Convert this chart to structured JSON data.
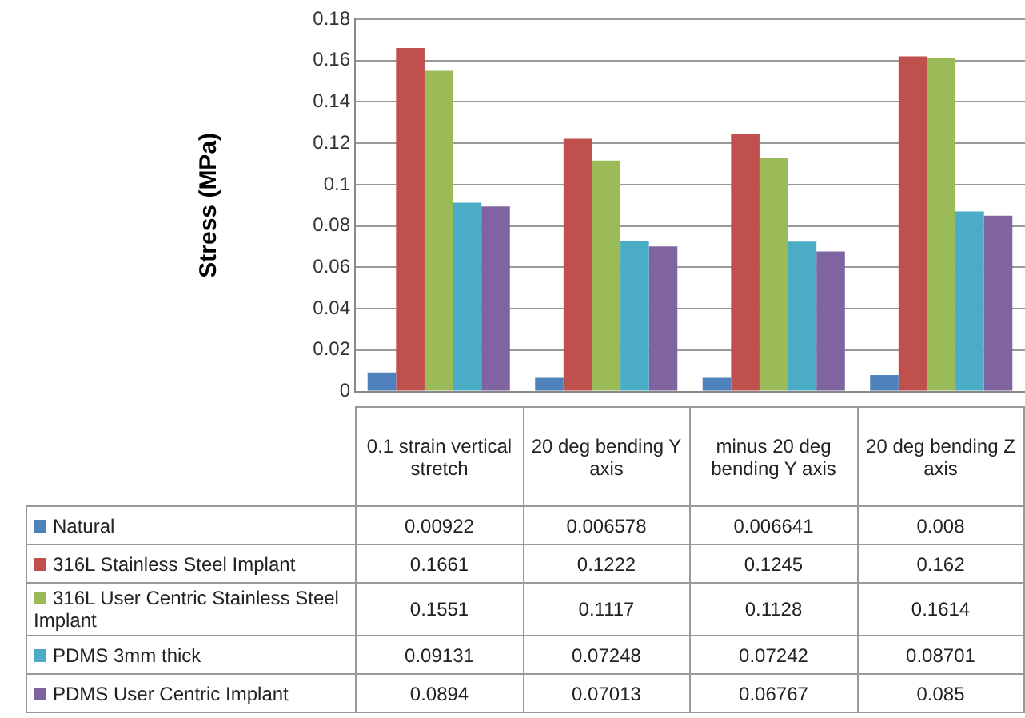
{
  "chart_data": {
    "type": "bar",
    "ylabel": "Stress (MPa)",
    "categories": [
      "0.1 strain vertical stretch",
      "20 deg bending Y axis",
      "minus 20 deg bending Y axis",
      "20 deg bending Z axis"
    ],
    "series": [
      {
        "name": "Natural",
        "color": "#4f81bd",
        "values": [
          0.00922,
          0.006578,
          0.006641,
          0.008
        ]
      },
      {
        "name": "316L Stainless Steel Implant",
        "color": "#c0504d",
        "values": [
          0.1661,
          0.1222,
          0.1245,
          0.162
        ]
      },
      {
        "name": "316L User Centric Stainless Steel Implant",
        "color": "#9bbb59",
        "values": [
          0.1551,
          0.1117,
          0.1128,
          0.1614
        ]
      },
      {
        "name": "PDMS 3mm thick",
        "color": "#4bacc6",
        "values": [
          0.09131,
          0.07248,
          0.07242,
          0.08701
        ]
      },
      {
        "name": "PDMS User Centric Implant",
        "color": "#8064a2",
        "values": [
          0.0894,
          0.07013,
          0.06767,
          0.085
        ]
      }
    ],
    "ylim": [
      0,
      0.18
    ],
    "yticks": [
      0,
      0.02,
      0.04,
      0.06,
      0.08,
      0.1,
      0.12,
      0.14,
      0.16,
      0.18
    ],
    "grid": "y",
    "legend": "bottom",
    "data_labels": true
  }
}
